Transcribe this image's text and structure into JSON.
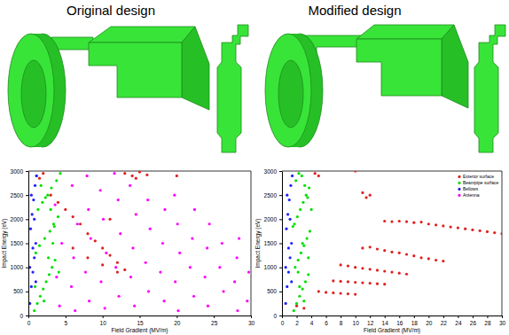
{
  "header": {
    "titles": [
      "Original design",
      "Modified design"
    ]
  },
  "chart_data": [
    {
      "type": "scatter",
      "xlabel": "Field Gradient (MV/m)",
      "ylabel": "Impact Energy (eV)",
      "xlim": [
        0,
        30
      ],
      "ylim": [
        0,
        3000
      ],
      "xticks": [
        0,
        5,
        10,
        15,
        20,
        25,
        30
      ],
      "yticks": [
        0,
        500,
        1000,
        1500,
        2000,
        2500,
        3000
      ],
      "marker": "circle",
      "series": [
        {
          "color": "#ff00ff",
          "x": [
            4.2,
            3.8,
            4.5,
            3.6,
            6.3,
            5.8,
            6.1,
            6.6,
            5.9,
            8.2,
            7.7,
            8.4,
            8.1,
            7.9,
            10.3,
            9.8,
            10.5,
            10.1,
            9.7,
            12.2,
            11.8,
            12.4,
            12.1,
            11.6,
            14.3,
            13.8,
            14.1,
            14.5,
            13.7,
            16.2,
            15.8,
            16.4,
            16.1,
            18.3,
            17.8,
            18.1,
            18.4,
            20.2,
            19.8,
            20.4,
            20.1,
            19.7,
            22.3,
            21.8,
            22.1,
            22.4,
            24.2,
            23.8,
            24.1,
            24.4,
            26.3,
            25.8,
            26.1,
            28.2,
            27.8,
            28.1,
            28.4,
            29.5,
            29.7
          ],
          "values": [
            200,
            800,
            1500,
            2300,
            100,
            600,
            1200,
            1900,
            2700,
            300,
            900,
            1600,
            2200,
            2900,
            150,
            700,
            1300,
            2000,
            2600,
            400,
            1000,
            1700,
            2400,
            2950,
            200,
            800,
            1400,
            2100,
            2700,
            500,
            1100,
            1800,
            2400,
            300,
            900,
            1500,
            2200,
            100,
            700,
            1300,
            1900,
            2500,
            400,
            1000,
            1600,
            2200,
            200,
            800,
            1400,
            1900,
            500,
            1000,
            1500,
            100,
            700,
            1200,
            1600,
            300,
            900
          ]
        },
        {
          "color": "#00e000",
          "x": [
            0.8,
            1.2,
            1.6,
            2,
            2.4,
            2.8,
            3.2,
            3.6,
            1,
            1.5,
            2.2,
            2.9,
            3.4,
            4,
            1.3,
            1.9,
            2.6,
            3.1,
            3.8,
            4.3,
            1.1,
            1.7,
            2.3,
            3,
            3.5,
            0.9,
            2.1,
            2.7,
            3.3,
            4.1
          ],
          "values": [
            100,
            250,
            400,
            550,
            700,
            850,
            1000,
            1150,
            1300,
            1450,
            1600,
            1750,
            1900,
            2050,
            2200,
            2350,
            2500,
            2650,
            2800,
            2950,
            2900,
            2700,
            2450,
            2200,
            1850,
            600,
            300,
            1200,
            1500,
            900
          ]
        },
        {
          "color": "#2020ff",
          "x": [
            0.2,
            0.4,
            0.6,
            0.8,
            1,
            0.3,
            0.5,
            0.7,
            0.9,
            1.1,
            0.2,
            0.6,
            1,
            0.4,
            0.8
          ],
          "values": [
            250,
            600,
            900,
            1200,
            1500,
            1800,
            2100,
            2400,
            2700,
            2900,
            1000,
            1400,
            700,
            2500,
            2000
          ]
        },
        {
          "color": "#e02020",
          "x": [
            3,
            4,
            5,
            6,
            7,
            8,
            9,
            10,
            11,
            12,
            13,
            6,
            8,
            10,
            12,
            13,
            14,
            15,
            16,
            14.5,
            1.5,
            2,
            20,
            11
          ],
          "values": [
            2500,
            2350,
            2200,
            2050,
            1900,
            1700,
            1550,
            1400,
            1250,
            1100,
            950,
            1400,
            1200,
            1050,
            900,
            2950,
            2900,
            2980,
            2920,
            2850,
            2850,
            2950,
            2900,
            2000
          ]
        }
      ]
    },
    {
      "type": "scatter",
      "xlabel": "Field Gradient (MV/m)",
      "ylabel": "Impact Energy (eV)",
      "xlim": [
        0,
        30
      ],
      "ylim": [
        0,
        3000
      ],
      "xticks": [
        0,
        2,
        4,
        6,
        8,
        10,
        12,
        14,
        16,
        18,
        20,
        22,
        24,
        26,
        28,
        30
      ],
      "yticks": [
        0,
        500,
        1000,
        1500,
        2000,
        2500,
        3000
      ],
      "marker": "circle",
      "legend": "top-right",
      "series": [
        {
          "name": "Exterior surface",
          "color": "#e02020",
          "x": [
            14,
            15,
            16,
            17,
            18,
            19,
            20,
            21,
            22,
            23,
            24,
            25,
            26,
            27,
            28,
            29,
            30,
            11,
            12,
            13,
            14,
            15,
            16,
            17,
            18,
            19,
            20,
            21,
            22,
            8,
            9,
            10,
            11,
            12,
            13,
            14,
            15,
            16,
            17,
            7,
            8,
            9,
            10,
            11,
            12,
            13,
            14,
            5,
            6,
            7,
            8,
            9,
            10,
            4.5,
            5,
            10,
            11,
            12,
            11.5,
            2,
            3
          ],
          "values": [
            1960,
            1950,
            1960,
            1950,
            1930,
            1940,
            1900,
            1880,
            1860,
            1840,
            1820,
            1800,
            1780,
            1760,
            1740,
            1720,
            1700,
            1400,
            1420,
            1380,
            1350,
            1320,
            1300,
            1270,
            1240,
            1200,
            1180,
            1150,
            1130,
            1050,
            1030,
            1000,
            980,
            960,
            940,
            920,
            900,
            880,
            860,
            720,
            710,
            700,
            690,
            680,
            670,
            660,
            650,
            500,
            480,
            470,
            460,
            450,
            440,
            2950,
            2900,
            3000,
            2550,
            2500,
            2450,
            200,
            150
          ]
        },
        {
          "name": "Beampipe surface",
          "color": "#00e000",
          "x": [
            1.6,
            2,
            2.4,
            2.8,
            3.2,
            3.6,
            1.8,
            2.2,
            2.6,
            3,
            3.4,
            3.8,
            1.7,
            2.1,
            2.5,
            2.9,
            3.3,
            3.7,
            1.9,
            2.3,
            2.7,
            3.1,
            3.5,
            4,
            1.5,
            2.4,
            3,
            3.6,
            2.8,
            2.2
          ],
          "values": [
            100,
            250,
            400,
            550,
            700,
            850,
            1000,
            1150,
            1300,
            1450,
            1600,
            1750,
            1900,
            2050,
            2200,
            2350,
            2500,
            2650,
            2800,
            2950,
            2900,
            2700,
            2450,
            2200,
            1850,
            600,
            300,
            1200,
            1500,
            900
          ]
        },
        {
          "name": "Bellows",
          "color": "#2020ff",
          "x": [
            0.5,
            0.7,
            0.9,
            1.1,
            1.3,
            0.6,
            0.8,
            1,
            1.2,
            1.4,
            0.5,
            0.9,
            1.3,
            0.7,
            1.1
          ],
          "values": [
            250,
            600,
            900,
            1200,
            1500,
            1800,
            2100,
            2400,
            2700,
            2900,
            1000,
            1400,
            700,
            2500,
            2000
          ]
        },
        {
          "name": "Antenna",
          "color": "#ff00ff",
          "x": [],
          "values": []
        }
      ]
    }
  ]
}
